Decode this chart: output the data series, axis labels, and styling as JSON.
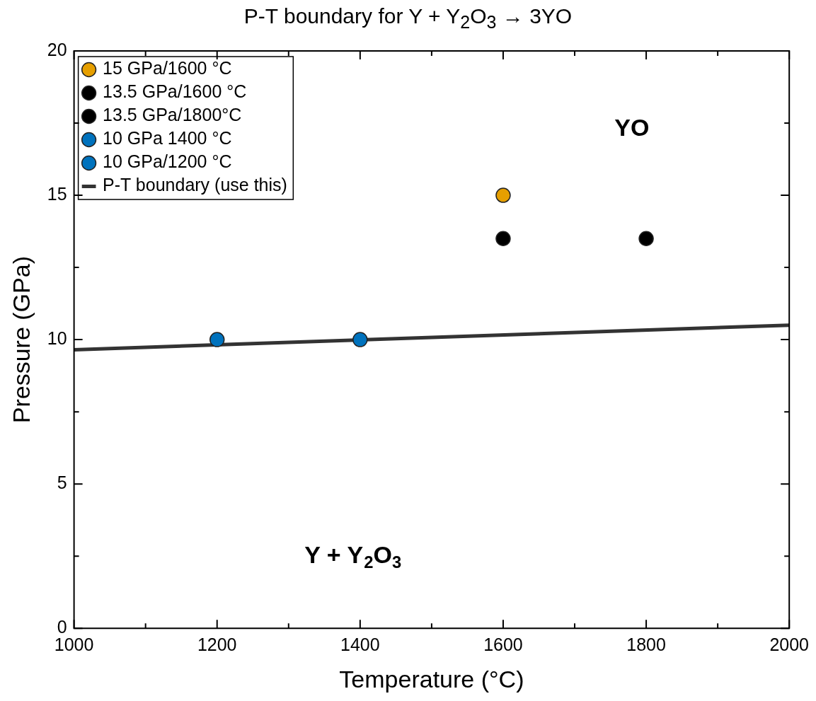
{
  "chart_data": {
    "type": "scatter",
    "title": "P-T boundary for Y + Y$_{2}$O$_{3}$ → 3YO",
    "xlabel": "Temperature (°C)",
    "ylabel": "Pressure (GPa)",
    "xlim": [
      1000,
      2000
    ],
    "xticks": [
      1000,
      1200,
      1400,
      1600,
      1800,
      2000
    ],
    "ylim": [
      0,
      20
    ],
    "yticks": [
      0,
      5,
      10,
      15,
      20
    ],
    "grid": false,
    "legend": "top left",
    "marker": "circle",
    "series": [
      {
        "name": "15 GPa/1600 °C",
        "color": "#e69f00",
        "x": [
          1600
        ],
        "values": [
          15
        ]
      },
      {
        "name": "13.5 GPa/1600 °C",
        "color": "#000000",
        "x": [
          1600
        ],
        "values": [
          13.5
        ]
      },
      {
        "name": "13.5 GPa/1800°C",
        "color": "#000000",
        "x": [
          1800
        ],
        "values": [
          13.5
        ]
      },
      {
        "name": "10 GPa 1400 °C",
        "color": "#0072bd",
        "x": [
          1400
        ],
        "values": [
          10
        ]
      },
      {
        "name": "10 GPa/1200 °C",
        "color": "#0072bd",
        "x": [
          1200
        ],
        "values": [
          10
        ]
      },
      {
        "name": "P-T boundary (use this)",
        "type": "line",
        "color": "#333333",
        "x": [
          1000,
          2000
        ],
        "values": [
          9.65,
          10.5
        ],
        "marker": "none"
      }
    ],
    "annotations": [
      "YO",
      "Y + Y$_{2}$O$_{3}$"
    ]
  }
}
